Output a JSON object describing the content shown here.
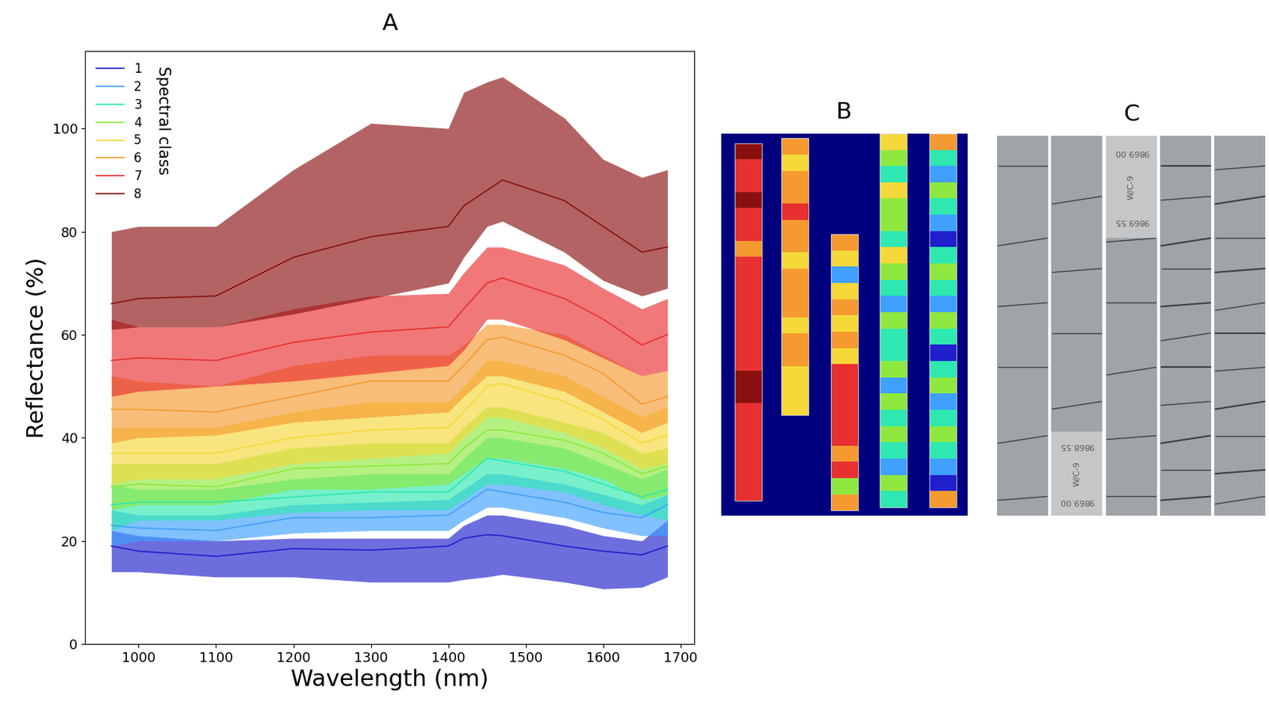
{
  "chart_data": {
    "type": "line",
    "title": "A",
    "x_label": "Wavelength (nm)",
    "y_label": "Reflectance (%)",
    "x": [
      965,
      1000,
      1100,
      1200,
      1300,
      1400,
      1420,
      1450,
      1470,
      1550,
      1600,
      1650,
      1683
    ],
    "xlim": [
      931,
      1718
    ],
    "xticks": [
      1000,
      1100,
      1200,
      1300,
      1400,
      1500,
      1600,
      1700
    ],
    "ylim": [
      0,
      115
    ],
    "yticks": [
      0,
      20,
      40,
      60,
      80,
      100
    ],
    "legend": "upper left",
    "legend_title": "Spectral class",
    "grid": false,
    "series": [
      {
        "name": "1",
        "color": "#1f1fcc",
        "values": [
          19,
          18,
          17,
          18.5,
          18.2,
          19,
          20.5,
          21.2,
          21,
          19,
          18,
          17.3,
          19
        ],
        "upper": [
          22,
          21,
          20,
          20.5,
          20.5,
          20.5,
          23,
          25,
          25,
          23,
          21,
          20,
          24
        ],
        "lower": [
          14,
          14,
          13,
          13,
          12,
          12,
          12.5,
          13,
          13.5,
          12,
          10.7,
          11,
          13
        ]
      },
      {
        "name": "2",
        "color": "#3fa0ff",
        "values": [
          23,
          22.5,
          22,
          24.5,
          24.5,
          25,
          27,
          30,
          29.5,
          27.5,
          25.5,
          24.5,
          27
        ],
        "upper": [
          26,
          25,
          25,
          27,
          27.5,
          28,
          30,
          33,
          33,
          31,
          29,
          27,
          29
        ],
        "lower": [
          19,
          20,
          20,
          21.5,
          22,
          22,
          24,
          26.5,
          26.5,
          24.5,
          22.5,
          21,
          21
        ]
      },
      {
        "name": "3",
        "color": "#2ee8b0",
        "values": [
          27,
          27.5,
          27.5,
          28.5,
          29.5,
          29.5,
          32,
          36,
          35.5,
          33.5,
          31,
          28.5,
          30
        ],
        "upper": [
          31,
          30,
          30,
          32,
          33,
          33,
          36,
          40,
          40,
          38,
          35,
          32,
          34
        ],
        "lower": [
          22,
          24,
          24,
          25.5,
          26,
          26,
          28,
          31,
          31,
          29.5,
          27,
          25,
          24
        ]
      },
      {
        "name": "4",
        "color": "#8fe840",
        "values": [
          30.5,
          31,
          30.5,
          34,
          34.5,
          35,
          38,
          41.5,
          41.5,
          39.5,
          37,
          33,
          34.5
        ],
        "upper": [
          35,
          35,
          35,
          38,
          39,
          39,
          42,
          46,
          46,
          43,
          41,
          37,
          38
        ],
        "lower": [
          26,
          27,
          27,
          30,
          30,
          31,
          33,
          36,
          36,
          34,
          32,
          28,
          29
        ]
      },
      {
        "name": "5",
        "color": "#f5d83a",
        "values": [
          37,
          37,
          37,
          40,
          41.5,
          42,
          45,
          50,
          50.5,
          47,
          43.5,
          39,
          40.5
        ],
        "upper": [
          42,
          42,
          42,
          45,
          47,
          47,
          50,
          55,
          55,
          52,
          48,
          44,
          46
        ],
        "lower": [
          31,
          32,
          32,
          35,
          36,
          37,
          40,
          44,
          44,
          41,
          38,
          34,
          35
        ]
      },
      {
        "name": "6",
        "color": "#f59a30",
        "values": [
          45.5,
          45.5,
          45,
          48,
          51,
          51,
          54,
          59,
          59.5,
          56,
          52.5,
          46.5,
          48
        ],
        "upper": [
          52,
          51,
          50,
          54,
          56,
          56,
          58,
          62,
          62,
          60,
          56,
          52,
          53
        ],
        "lower": [
          39,
          40,
          40.5,
          43,
          44,
          45,
          48,
          52,
          52,
          49,
          45,
          41,
          43
        ]
      },
      {
        "name": "7",
        "color": "#e83030",
        "values": [
          55,
          55.5,
          55,
          58.5,
          60.5,
          61.5,
          65,
          70,
          71,
          67,
          63,
          58,
          60
        ],
        "upper": [
          63,
          61.5,
          61.5,
          65,
          67.5,
          68,
          72,
          77,
          77,
          73.5,
          69,
          65,
          67
        ],
        "lower": [
          48,
          49,
          50,
          51,
          52.5,
          54,
          57,
          63,
          63,
          59,
          55.5,
          52,
          53
        ]
      },
      {
        "name": "8",
        "color": "#8a1010",
        "values": [
          66,
          67,
          67.5,
          75,
          79,
          81,
          85,
          88,
          90,
          86,
          81,
          76,
          77
        ],
        "upper": [
          80,
          81,
          81,
          92,
          101,
          100,
          107,
          109,
          110,
          102,
          94,
          90.5,
          92
        ],
        "lower": [
          61,
          61.5,
          61.5,
          64,
          67,
          70,
          75,
          81,
          82,
          76,
          70.5,
          67.5,
          69
        ]
      }
    ]
  },
  "panel_b": {
    "title": "B",
    "background": "#00007f",
    "columns": [
      [
        8,
        7,
        7,
        8,
        7,
        7,
        6,
        7,
        7,
        7,
        7,
        7,
        7,
        7,
        8,
        8,
        7,
        7,
        7,
        7,
        7,
        7
      ],
      [
        6,
        5,
        6,
        6,
        7,
        6,
        6,
        5,
        6,
        6,
        6,
        5,
        6,
        6,
        5,
        5,
        5
      ],
      [
        6,
        5,
        2,
        5,
        6,
        5,
        6,
        5,
        7,
        7,
        7,
        7,
        7,
        6,
        7,
        4,
        6
      ],
      [
        5,
        4,
        3,
        5,
        4,
        4,
        3,
        5,
        4,
        3,
        2,
        4,
        3,
        3,
        4,
        2,
        4,
        3,
        4,
        3,
        2,
        4,
        3
      ],
      [
        6,
        3,
        2,
        4,
        3,
        2,
        1,
        3,
        4,
        3,
        2,
        4,
        3,
        1,
        3,
        4,
        2,
        3,
        4,
        3,
        2,
        1,
        6
      ]
    ]
  },
  "panel_c": {
    "title": "C",
    "labels": [
      [
        "9869.00",
        "W/C-9",
        "9869.55"
      ],
      [
        "9868.55",
        "W/C-9",
        "9869.00"
      ]
    ]
  }
}
